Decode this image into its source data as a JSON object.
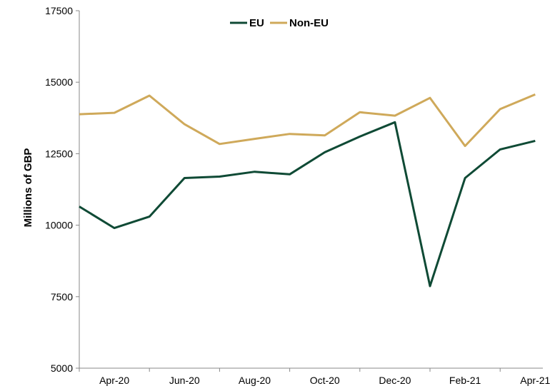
{
  "chart_data": {
    "type": "line",
    "title": "",
    "xlabel": "",
    "ylabel": "Millions of GBP",
    "x": [
      "Mar-20",
      "Apr-20",
      "May-20",
      "Jun-20",
      "Jul-20",
      "Aug-20",
      "Sep-20",
      "Oct-20",
      "Nov-20",
      "Dec-20",
      "Jan-21",
      "Feb-21",
      "Mar-21",
      "Apr-21"
    ],
    "x_tick_labels": [
      "Apr-20",
      "Jun-20",
      "Aug-20",
      "Oct-20",
      "Dec-20",
      "Feb-21",
      "Apr-21"
    ],
    "y_ticks": [
      5000,
      7500,
      10000,
      12500,
      15000,
      17500
    ],
    "ylim": [
      5000,
      17500
    ],
    "grid": false,
    "legend_position": "top-center",
    "series": [
      {
        "name": "EU",
        "color": "#0f4a35",
        "values": [
          10650,
          9900,
          10300,
          11650,
          11700,
          11870,
          11780,
          12550,
          13100,
          13600,
          7870,
          11650,
          12650,
          12950
        ]
      },
      {
        "name": "Non-EU",
        "color": "#cfa95a",
        "values": [
          13880,
          13930,
          14530,
          13530,
          12840,
          13020,
          13190,
          13140,
          13950,
          13830,
          14450,
          12770,
          14060,
          14570
        ]
      }
    ]
  }
}
